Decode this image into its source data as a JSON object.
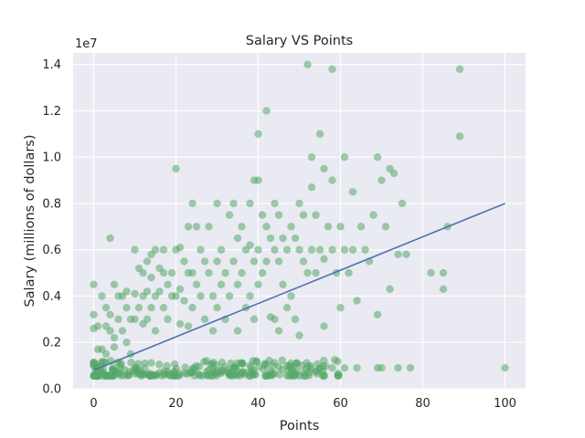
{
  "chart_data": {
    "type": "scatter",
    "title": "Salary VS Points",
    "xlabel": "Points",
    "ylabel": "Salary (millions of dollars)",
    "y_offset_label": "1e7",
    "xlim": [
      -5,
      105
    ],
    "ylim": [
      0,
      14500000
    ],
    "xticks": [
      0,
      20,
      40,
      60,
      80,
      100
    ],
    "xtick_labels": [
      "0",
      "20",
      "40",
      "60",
      "80",
      "100"
    ],
    "yticks": [
      0,
      2000000,
      4000000,
      6000000,
      8000000,
      10000000,
      12000000,
      14000000
    ],
    "ytick_labels": [
      "0.0",
      "0.2",
      "0.4",
      "0.6",
      "0.8",
      "1.0",
      "1.2",
      "1.4"
    ],
    "grid": true,
    "background": "#eaeaf2",
    "point_color": "#55a868",
    "line_color": "#4c72b0",
    "series": [
      {
        "kind": "points",
        "points": [
          [
            0,
            4500000
          ],
          [
            0,
            3200000
          ],
          [
            0,
            2600000
          ],
          [
            1,
            2700000
          ],
          [
            0,
            1000000
          ],
          [
            1,
            1700000
          ],
          [
            2,
            1700000
          ],
          [
            2,
            4000000
          ],
          [
            3,
            3500000
          ],
          [
            3,
            2700000
          ],
          [
            3,
            1500000
          ],
          [
            4,
            6500000
          ],
          [
            4,
            3200000
          ],
          [
            4,
            2500000
          ],
          [
            5,
            4500000
          ],
          [
            5,
            2200000
          ],
          [
            5,
            1800000
          ],
          [
            6,
            4000000
          ],
          [
            6,
            3000000
          ],
          [
            7,
            4000000
          ],
          [
            7,
            2500000
          ],
          [
            8,
            4200000
          ],
          [
            8,
            3500000
          ],
          [
            8,
            2000000
          ],
          [
            9,
            3000000
          ],
          [
            9,
            1500000
          ],
          [
            10,
            6000000
          ],
          [
            10,
            4100000
          ],
          [
            10,
            3000000
          ],
          [
            11,
            5200000
          ],
          [
            11,
            3500000
          ],
          [
            12,
            5000000
          ],
          [
            12,
            4000000
          ],
          [
            12,
            2800000
          ],
          [
            13,
            5500000
          ],
          [
            13,
            4200000
          ],
          [
            13,
            3000000
          ],
          [
            14,
            5800000
          ],
          [
            14,
            4800000
          ],
          [
            14,
            3500000
          ],
          [
            15,
            6000000
          ],
          [
            15,
            4000000
          ],
          [
            15,
            2500000
          ],
          [
            16,
            5200000
          ],
          [
            16,
            4200000
          ],
          [
            17,
            6000000
          ],
          [
            17,
            5000000
          ],
          [
            17,
            3500000
          ],
          [
            18,
            4500000
          ],
          [
            18,
            3000000
          ],
          [
            19,
            5000000
          ],
          [
            19,
            4000000
          ],
          [
            20,
            9500000
          ],
          [
            20,
            6000000
          ],
          [
            20,
            4000000
          ],
          [
            21,
            6100000
          ],
          [
            21,
            4300000
          ],
          [
            21,
            2800000
          ],
          [
            22,
            5500000
          ],
          [
            22,
            3800000
          ],
          [
            23,
            7000000
          ],
          [
            23,
            5000000
          ],
          [
            23,
            2700000
          ],
          [
            24,
            8000000
          ],
          [
            24,
            5000000
          ],
          [
            24,
            3500000
          ],
          [
            25,
            7000000
          ],
          [
            25,
            4500000
          ],
          [
            26,
            6000000
          ],
          [
            26,
            4000000
          ],
          [
            27,
            5500000
          ],
          [
            27,
            3000000
          ],
          [
            28,
            7000000
          ],
          [
            28,
            5000000
          ],
          [
            29,
            4000000
          ],
          [
            29,
            2500000
          ],
          [
            30,
            8000000
          ],
          [
            30,
            5500000
          ],
          [
            30,
            3500000
          ],
          [
            31,
            6000000
          ],
          [
            31,
            4500000
          ],
          [
            32,
            5000000
          ],
          [
            32,
            3000000
          ],
          [
            33,
            7500000
          ],
          [
            33,
            4000000
          ],
          [
            34,
            8000000
          ],
          [
            34,
            5500000
          ],
          [
            35,
            6500000
          ],
          [
            35,
            4500000
          ],
          [
            35,
            2500000
          ],
          [
            36,
            7000000
          ],
          [
            36,
            5000000
          ],
          [
            37,
            6000000
          ],
          [
            37,
            3500000
          ],
          [
            38,
            8000000
          ],
          [
            38,
            6200000
          ],
          [
            38,
            4000000
          ],
          [
            39,
            9000000
          ],
          [
            39,
            5500000
          ],
          [
            39,
            3000000
          ],
          [
            40,
            11000000
          ],
          [
            40,
            9000000
          ],
          [
            40,
            6000000
          ],
          [
            40,
            4500000
          ],
          [
            41,
            7500000
          ],
          [
            41,
            5000000
          ],
          [
            42,
            12000000
          ],
          [
            42,
            7000000
          ],
          [
            42,
            5500000
          ],
          [
            43,
            6500000
          ],
          [
            43,
            3100000
          ],
          [
            44,
            8000000
          ],
          [
            44,
            6000000
          ],
          [
            44,
            3000000
          ],
          [
            45,
            7500000
          ],
          [
            45,
            5500000
          ],
          [
            45,
            2500000
          ],
          [
            46,
            6500000
          ],
          [
            46,
            4500000
          ],
          [
            47,
            6000000
          ],
          [
            47,
            3500000
          ],
          [
            48,
            7000000
          ],
          [
            48,
            4000000
          ],
          [
            49,
            6500000
          ],
          [
            49,
            3000000
          ],
          [
            50,
            8000000
          ],
          [
            50,
            6000000
          ],
          [
            50,
            2300000
          ],
          [
            51,
            7500000
          ],
          [
            51,
            5500000
          ],
          [
            52,
            14000000
          ],
          [
            52,
            5000000
          ],
          [
            53,
            10000000
          ],
          [
            53,
            8700000
          ],
          [
            53,
            6000000
          ],
          [
            54,
            7500000
          ],
          [
            54,
            5000000
          ],
          [
            55,
            11000000
          ],
          [
            55,
            6000000
          ],
          [
            56,
            9500000
          ],
          [
            56,
            5600000
          ],
          [
            56,
            2700000
          ],
          [
            57,
            7000000
          ],
          [
            58,
            13800000
          ],
          [
            58,
            9000000
          ],
          [
            58,
            6000000
          ],
          [
            59,
            5000000
          ],
          [
            60,
            7000000
          ],
          [
            60,
            3500000
          ],
          [
            61,
            10000000
          ],
          [
            61,
            6000000
          ],
          [
            62,
            5000000
          ],
          [
            63,
            8500000
          ],
          [
            63,
            6000000
          ],
          [
            64,
            3800000
          ],
          [
            65,
            7000000
          ],
          [
            66,
            6000000
          ],
          [
            67,
            5500000
          ],
          [
            68,
            7500000
          ],
          [
            69,
            10000000
          ],
          [
            69,
            3200000
          ],
          [
            70,
            9000000
          ],
          [
            71,
            7000000
          ],
          [
            72,
            9500000
          ],
          [
            72,
            4300000
          ],
          [
            73,
            9300000
          ],
          [
            74,
            5800000
          ],
          [
            75,
            8000000
          ],
          [
            76,
            5800000
          ],
          [
            82,
            5000000
          ],
          [
            85,
            5000000
          ],
          [
            85,
            4300000
          ],
          [
            86,
            7000000
          ],
          [
            89,
            13800000
          ],
          [
            89,
            10900000
          ],
          [
            47,
            1000000
          ],
          [
            48,
            1100000
          ],
          [
            55,
            900000
          ],
          [
            58,
            900000
          ],
          [
            61,
            900000
          ],
          [
            64,
            900000
          ],
          [
            69,
            900000
          ],
          [
            70,
            900000
          ],
          [
            74,
            900000
          ],
          [
            77,
            900000
          ],
          [
            100,
            900000
          ],
          [
            38,
            1000000
          ],
          [
            42,
            1050000
          ],
          [
            45,
            950000
          ],
          [
            30,
            1000000
          ],
          [
            35,
            1100000
          ]
        ]
      },
      {
        "kind": "dense-cluster",
        "x_range": [
          0,
          60
        ],
        "y_floor": 550000,
        "y_spread": 700000
      },
      {
        "kind": "regression-line",
        "name": "",
        "points": [
          [
            0,
            800000
          ],
          [
            100,
            8000000
          ]
        ]
      }
    ]
  }
}
